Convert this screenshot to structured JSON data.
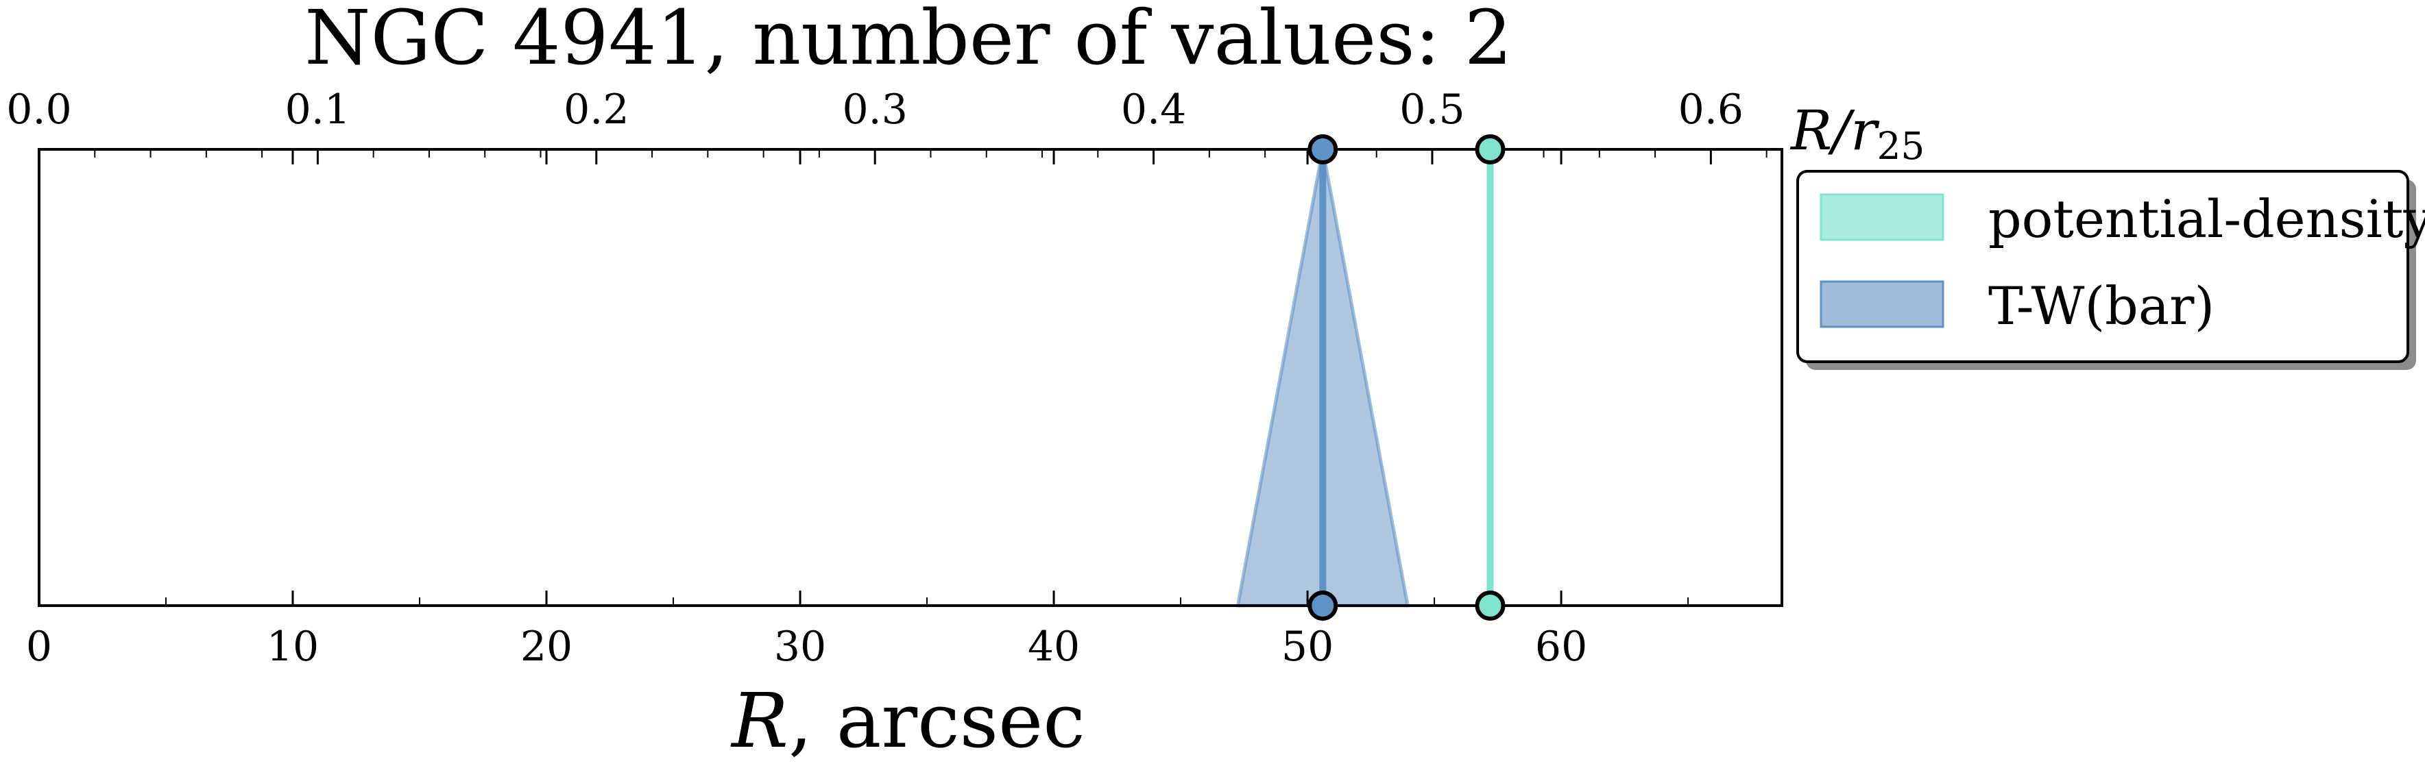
{
  "chart_data": {
    "type": "line",
    "title": "NGC 4941, number of values: 2",
    "xlabel_italic": "R",
    "xlabel_rest": ", arcsec",
    "secondary_xlabel_main": "R/r",
    "secondary_xlabel_sub": "25",
    "xlim": [
      0,
      68.7
    ],
    "xticks": [
      0,
      10,
      20,
      30,
      40,
      50,
      60
    ],
    "xtick_labels": [
      "0",
      "10",
      "20",
      "30",
      "40",
      "50",
      "60"
    ],
    "secondary_xlim": [
      0.0,
      0.6255
    ],
    "secondary_xticks": [
      0.0,
      0.1,
      0.2,
      0.3,
      0.4,
      0.5,
      0.6
    ],
    "secondary_xtick_labels": [
      "0.0",
      "0.1",
      "0.2",
      "0.3",
      "0.4",
      "0.5",
      "0.6"
    ],
    "y_axis_visible": false,
    "series": [
      {
        "name": "potential-density",
        "color": "#7fe3cf",
        "fill_color": "#a5ecdc",
        "x": 57.2,
        "error": 0.0
      },
      {
        "name": "T-W(bar)",
        "color": "#5f93c6",
        "fill_color": "#9ab8d8",
        "x": 50.6,
        "error": 3.35
      }
    ],
    "legend_position": "outside-right"
  }
}
